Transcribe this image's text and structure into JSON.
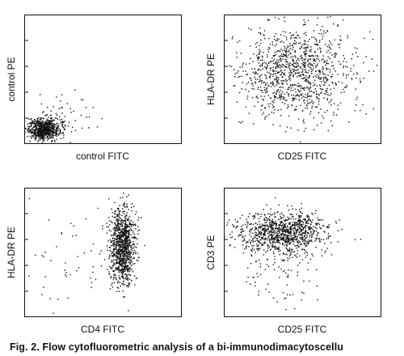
{
  "chart_data": [
    {
      "type": "scatter",
      "xlabel": "control FITC",
      "ylabel": "control PE",
      "xlim": [
        0,
        100
      ],
      "ylim": [
        0,
        100
      ],
      "grid": false,
      "clusters": [
        {
          "cx": 12,
          "cy": 12,
          "sx": 5,
          "sy": 4,
          "n": 700
        },
        {
          "cx": 22,
          "cy": 20,
          "sx": 10,
          "sy": 9,
          "n": 70
        }
      ]
    },
    {
      "type": "scatter",
      "xlabel": "CD25 FITC",
      "ylabel": "HLA-DR PE",
      "xlim": [
        0,
        100
      ],
      "ylim": [
        0,
        100
      ],
      "grid": false,
      "clusters": [
        {
          "cx": 45,
          "cy": 56,
          "sx": 18,
          "sy": 18,
          "n": 1100
        }
      ]
    },
    {
      "type": "scatter",
      "xlabel": "CD4 FITC",
      "ylabel": "HLA-DR PE",
      "xlim": [
        0,
        100
      ],
      "ylim": [
        0,
        100
      ],
      "grid": false,
      "clusters": [
        {
          "cx": 62,
          "cy": 56,
          "sx": 4,
          "sy": 15,
          "n": 1000
        },
        {
          "cx": 30,
          "cy": 45,
          "sx": 20,
          "sy": 22,
          "n": 60
        }
      ]
    },
    {
      "type": "scatter",
      "xlabel": "CD25 FITC",
      "ylabel": "CD3 PE",
      "xlim": [
        0,
        100
      ],
      "ylim": [
        0,
        100
      ],
      "grid": false,
      "clusters": [
        {
          "cx": 38,
          "cy": 66,
          "sx": 14,
          "sy": 8,
          "n": 1000
        },
        {
          "cx": 35,
          "cy": 42,
          "sx": 15,
          "sy": 15,
          "n": 120
        }
      ]
    }
  ],
  "caption": "Fig. 2.   Flow cytofluorometric analysis of a bi-immunodimacytoscellu"
}
